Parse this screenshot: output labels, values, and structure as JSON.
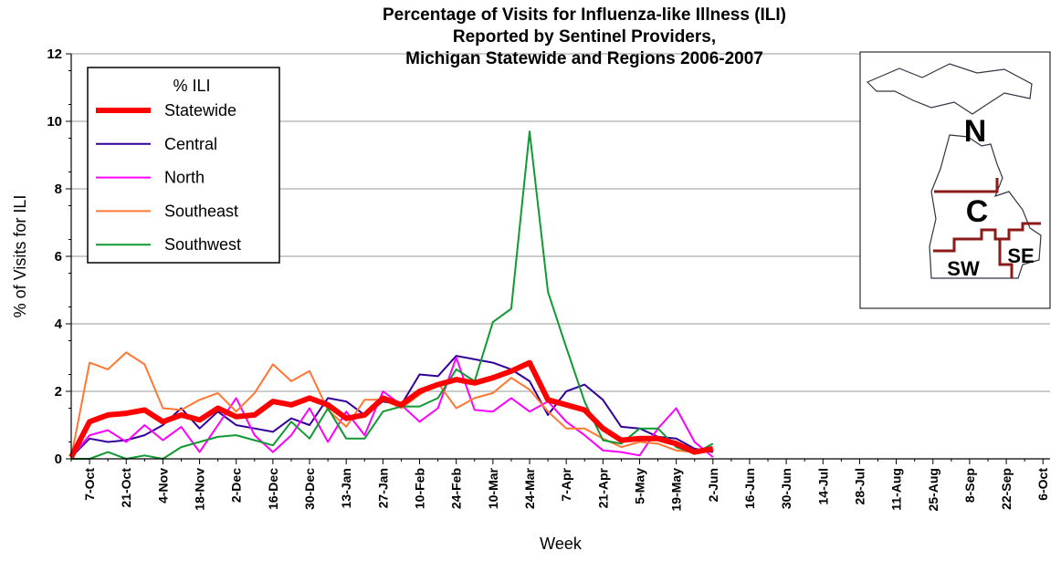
{
  "chart_data": {
    "type": "line",
    "title": [
      "Percentage of Visits for Influenza-like Illness (ILI)",
      "Reported by Sentinel Providers,",
      "Michigan Statewide and Regions 2006-2007"
    ],
    "x_label": "Week",
    "y_label": "% of Visits for ILI",
    "legend_title": "% ILI",
    "legend_position": "upper left",
    "grid": true,
    "ylim": [
      0,
      12
    ],
    "yticks": [
      0,
      2,
      4,
      6,
      8,
      10,
      12
    ],
    "map_labels": [
      "N",
      "C",
      "SW",
      "SE"
    ],
    "categories": [
      null,
      "7-Oct",
      null,
      "21-Oct",
      null,
      "4-Nov",
      null,
      "18-Nov",
      null,
      "2-Dec",
      null,
      "16-Dec",
      null,
      "30-Dec",
      null,
      "13-Jan",
      null,
      "27-Jan",
      null,
      "10-Feb",
      null,
      "24-Feb",
      null,
      "10-Mar",
      null,
      "24-Mar",
      null,
      "7-Apr",
      null,
      "21-Apr",
      null,
      "5-May",
      null,
      "19-May",
      null,
      "2-Jun",
      null,
      "16-Jun",
      null,
      "30-Jun",
      null,
      "14-Jul",
      null,
      "28-Jul",
      null,
      "11-Aug",
      null,
      "25-Aug",
      null,
      "8-Sep",
      null,
      "22-Sep",
      null,
      "6-Oct"
    ],
    "series": [
      {
        "name": "Statewide",
        "color": "#ff0000",
        "width": 6,
        "values": [
          0.05,
          1.1,
          1.3,
          1.35,
          1.45,
          1.1,
          1.3,
          1.15,
          1.5,
          1.25,
          1.3,
          1.7,
          1.6,
          1.8,
          1.6,
          1.2,
          1.3,
          1.8,
          1.6,
          2.0,
          2.2,
          2.35,
          2.25,
          2.4,
          2.6,
          2.85,
          1.75,
          1.6,
          1.45,
          0.9,
          0.55,
          0.6,
          0.6,
          0.45,
          0.2,
          0.3,
          null,
          null,
          null,
          null,
          null,
          null,
          null,
          null,
          null,
          null,
          null,
          null,
          null,
          null,
          null,
          null,
          null,
          null
        ]
      },
      {
        "name": "Central",
        "color": "#330099",
        "width": 2,
        "values": [
          0.05,
          0.6,
          0.5,
          0.55,
          0.7,
          1.0,
          1.5,
          0.9,
          1.4,
          1.0,
          0.9,
          0.8,
          1.2,
          1.0,
          1.8,
          1.7,
          1.3,
          1.7,
          1.6,
          2.5,
          2.45,
          3.05,
          2.95,
          2.85,
          2.65,
          2.3,
          1.3,
          2.0,
          2.2,
          1.75,
          0.95,
          0.9,
          0.65,
          0.6,
          0.3,
          0.2,
          null,
          null,
          null,
          null,
          null,
          null,
          null,
          null,
          null,
          null,
          null,
          null,
          null,
          null,
          null,
          null,
          null,
          null
        ]
      },
      {
        "name": "North",
        "color": "#ff00ff",
        "width": 2,
        "values": [
          0.05,
          0.7,
          0.85,
          0.5,
          1.0,
          0.55,
          0.95,
          0.2,
          1.0,
          1.8,
          0.7,
          0.2,
          0.7,
          1.5,
          0.5,
          1.4,
          0.7,
          2.0,
          1.6,
          1.1,
          1.5,
          3.0,
          1.45,
          1.4,
          1.8,
          1.4,
          1.7,
          1.1,
          0.7,
          0.25,
          0.2,
          0.1,
          0.9,
          1.5,
          0.5,
          0.05,
          null,
          null,
          null,
          null,
          null,
          null,
          null,
          null,
          null,
          null,
          null,
          null,
          null,
          null,
          null,
          null,
          null,
          null
        ]
      },
      {
        "name": "Southeast",
        "color": "#ff7733",
        "width": 2,
        "values": [
          0.05,
          2.85,
          2.65,
          3.15,
          2.8,
          1.5,
          1.45,
          1.75,
          1.95,
          1.4,
          1.95,
          2.8,
          2.3,
          2.6,
          1.45,
          0.95,
          1.75,
          1.75,
          1.5,
          1.9,
          2.25,
          1.5,
          1.8,
          1.95,
          2.4,
          2.05,
          1.4,
          0.9,
          0.9,
          0.6,
          0.35,
          0.5,
          0.45,
          0.25,
          0.2,
          0.25,
          null,
          null,
          null,
          null,
          null,
          null,
          null,
          null,
          null,
          null,
          null,
          null,
          null,
          null,
          null,
          null,
          null,
          null
        ]
      },
      {
        "name": "Southwest",
        "color": "#119933",
        "width": 2,
        "values": [
          0.0,
          0.0,
          0.2,
          0.0,
          0.1,
          0.0,
          0.35,
          0.5,
          0.65,
          0.7,
          0.55,
          0.4,
          1.1,
          0.6,
          1.5,
          0.6,
          0.6,
          1.4,
          1.55,
          1.55,
          1.8,
          2.65,
          2.3,
          4.05,
          4.45,
          9.7,
          4.95,
          3.3,
          1.7,
          0.55,
          0.45,
          0.9,
          0.9,
          0.35,
          0.15,
          0.45,
          null,
          null,
          null,
          null,
          null,
          null,
          null,
          null,
          null,
          null,
          null,
          null,
          null,
          null,
          null,
          null,
          null,
          null
        ]
      }
    ]
  }
}
